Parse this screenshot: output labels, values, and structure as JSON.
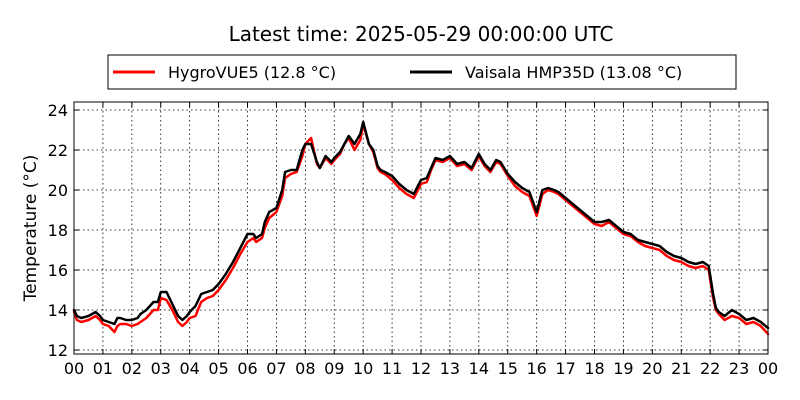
{
  "chart_data": {
    "type": "line",
    "title": "Latest time: 2025-05-29 00:00:00 UTC",
    "xlabel": "",
    "ylabel": "Temperature (°C)",
    "xlim": [
      0,
      24
    ],
    "ylim": [
      11.8,
      24.4
    ],
    "yticks": [
      12,
      14,
      16,
      18,
      20,
      22,
      24
    ],
    "xtick_labels": [
      "00",
      "01",
      "02",
      "03",
      "04",
      "05",
      "06",
      "07",
      "08",
      "09",
      "10",
      "11",
      "12",
      "13",
      "14",
      "15",
      "16",
      "17",
      "18",
      "19",
      "20",
      "21",
      "22",
      "23",
      "00"
    ],
    "grid": true,
    "legend_position": "top-center",
    "series": [
      {
        "name": "HygroVUE5 (12.8 °C)",
        "color": "#ff0000",
        "x": [
          0,
          0.1,
          0.25,
          0.5,
          0.75,
          0.9,
          1.0,
          1.2,
          1.4,
          1.5,
          1.6,
          1.8,
          2.0,
          2.2,
          2.3,
          2.5,
          2.75,
          2.9,
          3.0,
          3.2,
          3.4,
          3.6,
          3.75,
          3.9,
          4.0,
          4.2,
          4.4,
          4.6,
          4.8,
          5.0,
          5.25,
          5.5,
          5.75,
          6.0,
          6.2,
          6.3,
          6.5,
          6.6,
          6.75,
          7.0,
          7.2,
          7.3,
          7.5,
          7.7,
          7.9,
          8.0,
          8.2,
          8.4,
          8.5,
          8.7,
          8.9,
          9.0,
          9.2,
          9.35,
          9.5,
          9.7,
          9.9,
          10.0,
          10.2,
          10.35,
          10.5,
          10.6,
          10.75,
          11.0,
          11.25,
          11.5,
          11.75,
          12.0,
          12.2,
          12.35,
          12.5,
          12.75,
          13.0,
          13.25,
          13.5,
          13.75,
          14.0,
          14.2,
          14.4,
          14.6,
          14.75,
          15.0,
          15.25,
          15.5,
          15.75,
          16.0,
          16.2,
          16.4,
          16.6,
          16.75,
          17.0,
          17.25,
          17.5,
          17.75,
          18.0,
          18.25,
          18.5,
          18.75,
          19.0,
          19.25,
          19.5,
          19.75,
          20.0,
          20.25,
          20.5,
          20.75,
          21.0,
          21.25,
          21.5,
          21.75,
          21.95,
          22.1,
          22.2,
          22.3,
          22.5,
          22.75,
          23.0,
          23.25,
          23.5,
          23.75,
          24.0
        ],
        "y": [
          13.9,
          13.5,
          13.4,
          13.5,
          13.7,
          13.5,
          13.3,
          13.2,
          12.9,
          13.2,
          13.3,
          13.3,
          13.2,
          13.3,
          13.4,
          13.6,
          14.0,
          14.0,
          14.6,
          14.5,
          14.0,
          13.4,
          13.2,
          13.4,
          13.6,
          13.7,
          14.4,
          14.6,
          14.7,
          15.0,
          15.5,
          16.1,
          16.8,
          17.4,
          17.6,
          17.4,
          17.6,
          18.1,
          18.6,
          18.9,
          19.7,
          20.6,
          20.8,
          20.9,
          21.7,
          22.3,
          22.6,
          21.3,
          21.1,
          21.6,
          21.3,
          21.5,
          21.8,
          22.3,
          22.6,
          22.0,
          22.5,
          23.3,
          22.3,
          21.9,
          21.1,
          20.9,
          20.8,
          20.5,
          20.1,
          19.8,
          19.6,
          20.3,
          20.4,
          21.0,
          21.5,
          21.4,
          21.6,
          21.2,
          21.3,
          21.0,
          21.7,
          21.2,
          20.9,
          21.4,
          21.3,
          20.7,
          20.2,
          19.9,
          19.7,
          18.7,
          19.8,
          20.0,
          19.9,
          19.8,
          19.5,
          19.2,
          18.9,
          18.6,
          18.3,
          18.2,
          18.4,
          18.1,
          17.8,
          17.7,
          17.4,
          17.2,
          17.1,
          17.0,
          16.7,
          16.5,
          16.4,
          16.2,
          16.1,
          16.2,
          16.0,
          14.6,
          14.0,
          13.8,
          13.5,
          13.7,
          13.6,
          13.3,
          13.4,
          13.2,
          12.8
        ]
      },
      {
        "name": "Vaisala HMP35D (13.08 °C)",
        "color": "#000000",
        "x": [
          0,
          0.1,
          0.25,
          0.5,
          0.75,
          0.9,
          1.0,
          1.2,
          1.4,
          1.5,
          1.6,
          1.8,
          2.0,
          2.2,
          2.3,
          2.5,
          2.75,
          2.9,
          3.0,
          3.2,
          3.4,
          3.6,
          3.75,
          3.9,
          4.0,
          4.2,
          4.4,
          4.6,
          4.8,
          5.0,
          5.25,
          5.5,
          5.75,
          6.0,
          6.2,
          6.3,
          6.5,
          6.6,
          6.75,
          7.0,
          7.2,
          7.3,
          7.5,
          7.7,
          7.9,
          8.0,
          8.2,
          8.4,
          8.5,
          8.7,
          8.9,
          9.0,
          9.2,
          9.35,
          9.5,
          9.7,
          9.9,
          10.0,
          10.2,
          10.35,
          10.5,
          10.6,
          10.75,
          11.0,
          11.25,
          11.5,
          11.75,
          12.0,
          12.2,
          12.35,
          12.5,
          12.75,
          13.0,
          13.25,
          13.5,
          13.75,
          14.0,
          14.2,
          14.4,
          14.6,
          14.75,
          15.0,
          15.25,
          15.5,
          15.75,
          16.0,
          16.2,
          16.4,
          16.6,
          16.75,
          17.0,
          17.25,
          17.5,
          17.75,
          18.0,
          18.25,
          18.5,
          18.75,
          19.0,
          19.25,
          19.5,
          19.75,
          20.0,
          20.25,
          20.5,
          20.75,
          21.0,
          21.25,
          21.5,
          21.75,
          21.95,
          22.1,
          22.2,
          22.3,
          22.5,
          22.75,
          23.0,
          23.25,
          23.5,
          23.75,
          24.0
        ],
        "y": [
          14.0,
          13.7,
          13.6,
          13.7,
          13.9,
          13.7,
          13.5,
          13.4,
          13.3,
          13.6,
          13.6,
          13.5,
          13.5,
          13.6,
          13.8,
          14.0,
          14.4,
          14.4,
          14.9,
          14.9,
          14.3,
          13.7,
          13.5,
          13.7,
          13.9,
          14.2,
          14.8,
          14.9,
          15.0,
          15.3,
          15.8,
          16.4,
          17.1,
          17.8,
          17.8,
          17.6,
          17.8,
          18.4,
          18.9,
          19.1,
          20.0,
          20.9,
          21.0,
          21.0,
          22.0,
          22.3,
          22.3,
          21.4,
          21.1,
          21.7,
          21.4,
          21.6,
          21.9,
          22.3,
          22.7,
          22.3,
          22.8,
          23.4,
          22.3,
          22.0,
          21.2,
          21.0,
          20.9,
          20.7,
          20.3,
          20.0,
          19.8,
          20.5,
          20.6,
          21.1,
          21.6,
          21.5,
          21.7,
          21.3,
          21.4,
          21.1,
          21.8,
          21.3,
          21.0,
          21.5,
          21.4,
          20.8,
          20.4,
          20.1,
          19.9,
          18.9,
          20.0,
          20.1,
          20.0,
          19.9,
          19.6,
          19.3,
          19.0,
          18.7,
          18.4,
          18.4,
          18.5,
          18.2,
          17.9,
          17.8,
          17.5,
          17.4,
          17.3,
          17.2,
          16.9,
          16.7,
          16.6,
          16.4,
          16.3,
          16.4,
          16.2,
          14.8,
          14.1,
          13.9,
          13.7,
          14.0,
          13.8,
          13.5,
          13.6,
          13.4,
          13.1
        ]
      }
    ]
  }
}
